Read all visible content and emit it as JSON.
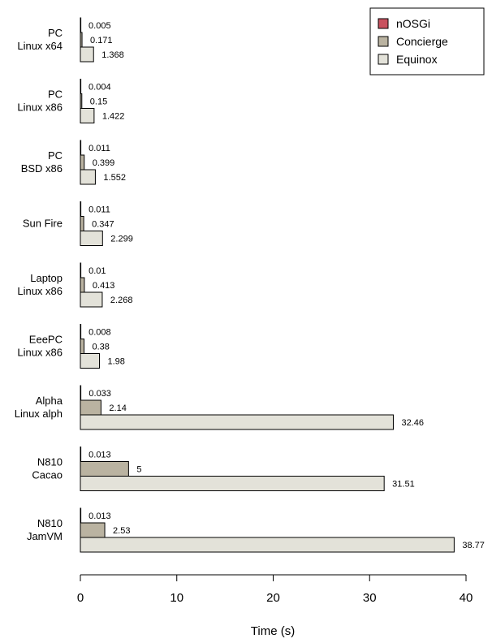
{
  "chart_data": {
    "type": "bar",
    "orientation": "horizontal",
    "title": "",
    "xlabel": "Time (s)",
    "ylabel": "",
    "xlim": [
      0,
      40
    ],
    "xticks": [
      0,
      10,
      20,
      30,
      40
    ],
    "grid": false,
    "legend_position": "top-right",
    "categories": [
      [
        "PC",
        "Linux x64"
      ],
      [
        "PC",
        "Linux x86"
      ],
      [
        "PC",
        "BSD x86"
      ],
      [
        "Sun Fire"
      ],
      [
        "Laptop",
        "Linux x86"
      ],
      [
        "EeePC",
        "Linux x86"
      ],
      [
        "Alpha",
        "Linux alph"
      ],
      [
        "N810",
        "Cacao"
      ],
      [
        "N810",
        "JamVM"
      ]
    ],
    "series": [
      {
        "name": "nOSGi",
        "color": "#c8525f",
        "values": [
          0.005,
          0.004,
          0.011,
          0.011,
          0.01,
          0.008,
          0.033,
          0.013,
          0.013
        ],
        "labels": [
          "0.005",
          "0.004",
          "0.011",
          "0.011",
          "0.01",
          "0.008",
          "0.033",
          "0.013",
          "0.013"
        ]
      },
      {
        "name": "Concierge",
        "color": "#bab3a1",
        "values": [
          0.171,
          0.15,
          0.399,
          0.347,
          0.413,
          0.38,
          2.14,
          5,
          2.53
        ],
        "labels": [
          "0.171",
          "0.15",
          "0.399",
          "0.347",
          "0.413",
          "0.38",
          "2.14",
          "5",
          "2.53"
        ]
      },
      {
        "name": "Equinox",
        "color": "#e3e2d9",
        "values": [
          1.368,
          1.422,
          1.552,
          2.299,
          2.268,
          1.98,
          32.46,
          31.51,
          38.77
        ],
        "labels": [
          "1.368",
          "1.422",
          "1.552",
          "2.299",
          "2.268",
          "1.98",
          "32.46",
          "31.51",
          "38.77"
        ]
      }
    ]
  }
}
